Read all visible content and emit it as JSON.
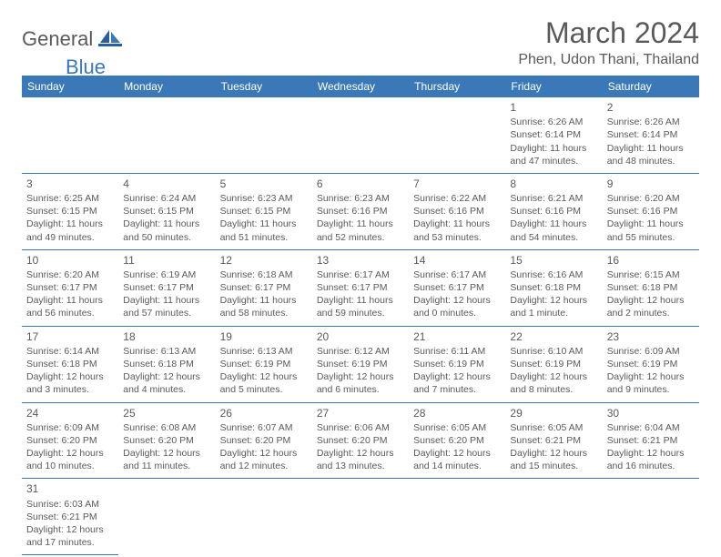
{
  "logo": {
    "general": "General",
    "blue": "Blue"
  },
  "title": "March 2024",
  "location": "Phen, Udon Thani, Thailand",
  "colors": {
    "header_bg": "#3b78b8",
    "header_text": "#ffffff",
    "text": "#5a5a5a",
    "divider": "#3b78b8",
    "page_bg": "#ffffff"
  },
  "day_headers": [
    "Sunday",
    "Monday",
    "Tuesday",
    "Wednesday",
    "Thursday",
    "Friday",
    "Saturday"
  ],
  "weeks": [
    [
      null,
      null,
      null,
      null,
      null,
      {
        "n": "1",
        "sr": "Sunrise: 6:26 AM",
        "ss": "Sunset: 6:14 PM",
        "dl": "Daylight: 11 hours and 47 minutes."
      },
      {
        "n": "2",
        "sr": "Sunrise: 6:26 AM",
        "ss": "Sunset: 6:14 PM",
        "dl": "Daylight: 11 hours and 48 minutes."
      }
    ],
    [
      {
        "n": "3",
        "sr": "Sunrise: 6:25 AM",
        "ss": "Sunset: 6:15 PM",
        "dl": "Daylight: 11 hours and 49 minutes."
      },
      {
        "n": "4",
        "sr": "Sunrise: 6:24 AM",
        "ss": "Sunset: 6:15 PM",
        "dl": "Daylight: 11 hours and 50 minutes."
      },
      {
        "n": "5",
        "sr": "Sunrise: 6:23 AM",
        "ss": "Sunset: 6:15 PM",
        "dl": "Daylight: 11 hours and 51 minutes."
      },
      {
        "n": "6",
        "sr": "Sunrise: 6:23 AM",
        "ss": "Sunset: 6:16 PM",
        "dl": "Daylight: 11 hours and 52 minutes."
      },
      {
        "n": "7",
        "sr": "Sunrise: 6:22 AM",
        "ss": "Sunset: 6:16 PM",
        "dl": "Daylight: 11 hours and 53 minutes."
      },
      {
        "n": "8",
        "sr": "Sunrise: 6:21 AM",
        "ss": "Sunset: 6:16 PM",
        "dl": "Daylight: 11 hours and 54 minutes."
      },
      {
        "n": "9",
        "sr": "Sunrise: 6:20 AM",
        "ss": "Sunset: 6:16 PM",
        "dl": "Daylight: 11 hours and 55 minutes."
      }
    ],
    [
      {
        "n": "10",
        "sr": "Sunrise: 6:20 AM",
        "ss": "Sunset: 6:17 PM",
        "dl": "Daylight: 11 hours and 56 minutes."
      },
      {
        "n": "11",
        "sr": "Sunrise: 6:19 AM",
        "ss": "Sunset: 6:17 PM",
        "dl": "Daylight: 11 hours and 57 minutes."
      },
      {
        "n": "12",
        "sr": "Sunrise: 6:18 AM",
        "ss": "Sunset: 6:17 PM",
        "dl": "Daylight: 11 hours and 58 minutes."
      },
      {
        "n": "13",
        "sr": "Sunrise: 6:17 AM",
        "ss": "Sunset: 6:17 PM",
        "dl": "Daylight: 11 hours and 59 minutes."
      },
      {
        "n": "14",
        "sr": "Sunrise: 6:17 AM",
        "ss": "Sunset: 6:17 PM",
        "dl": "Daylight: 12 hours and 0 minutes."
      },
      {
        "n": "15",
        "sr": "Sunrise: 6:16 AM",
        "ss": "Sunset: 6:18 PM",
        "dl": "Daylight: 12 hours and 1 minute."
      },
      {
        "n": "16",
        "sr": "Sunrise: 6:15 AM",
        "ss": "Sunset: 6:18 PM",
        "dl": "Daylight: 12 hours and 2 minutes."
      }
    ],
    [
      {
        "n": "17",
        "sr": "Sunrise: 6:14 AM",
        "ss": "Sunset: 6:18 PM",
        "dl": "Daylight: 12 hours and 3 minutes."
      },
      {
        "n": "18",
        "sr": "Sunrise: 6:13 AM",
        "ss": "Sunset: 6:18 PM",
        "dl": "Daylight: 12 hours and 4 minutes."
      },
      {
        "n": "19",
        "sr": "Sunrise: 6:13 AM",
        "ss": "Sunset: 6:19 PM",
        "dl": "Daylight: 12 hours and 5 minutes."
      },
      {
        "n": "20",
        "sr": "Sunrise: 6:12 AM",
        "ss": "Sunset: 6:19 PM",
        "dl": "Daylight: 12 hours and 6 minutes."
      },
      {
        "n": "21",
        "sr": "Sunrise: 6:11 AM",
        "ss": "Sunset: 6:19 PM",
        "dl": "Daylight: 12 hours and 7 minutes."
      },
      {
        "n": "22",
        "sr": "Sunrise: 6:10 AM",
        "ss": "Sunset: 6:19 PM",
        "dl": "Daylight: 12 hours and 8 minutes."
      },
      {
        "n": "23",
        "sr": "Sunrise: 6:09 AM",
        "ss": "Sunset: 6:19 PM",
        "dl": "Daylight: 12 hours and 9 minutes."
      }
    ],
    [
      {
        "n": "24",
        "sr": "Sunrise: 6:09 AM",
        "ss": "Sunset: 6:20 PM",
        "dl": "Daylight: 12 hours and 10 minutes."
      },
      {
        "n": "25",
        "sr": "Sunrise: 6:08 AM",
        "ss": "Sunset: 6:20 PM",
        "dl": "Daylight: 12 hours and 11 minutes."
      },
      {
        "n": "26",
        "sr": "Sunrise: 6:07 AM",
        "ss": "Sunset: 6:20 PM",
        "dl": "Daylight: 12 hours and 12 minutes."
      },
      {
        "n": "27",
        "sr": "Sunrise: 6:06 AM",
        "ss": "Sunset: 6:20 PM",
        "dl": "Daylight: 12 hours and 13 minutes."
      },
      {
        "n": "28",
        "sr": "Sunrise: 6:05 AM",
        "ss": "Sunset: 6:20 PM",
        "dl": "Daylight: 12 hours and 14 minutes."
      },
      {
        "n": "29",
        "sr": "Sunrise: 6:05 AM",
        "ss": "Sunset: 6:21 PM",
        "dl": "Daylight: 12 hours and 15 minutes."
      },
      {
        "n": "30",
        "sr": "Sunrise: 6:04 AM",
        "ss": "Sunset: 6:21 PM",
        "dl": "Daylight: 12 hours and 16 minutes."
      }
    ],
    [
      {
        "n": "31",
        "sr": "Sunrise: 6:03 AM",
        "ss": "Sunset: 6:21 PM",
        "dl": "Daylight: 12 hours and 17 minutes."
      },
      null,
      null,
      null,
      null,
      null,
      null
    ]
  ]
}
